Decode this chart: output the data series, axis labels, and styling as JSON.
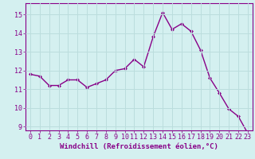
{
  "x": [
    0,
    1,
    2,
    3,
    4,
    5,
    6,
    7,
    8,
    9,
    10,
    11,
    12,
    13,
    14,
    15,
    16,
    17,
    18,
    19,
    20,
    21,
    22,
    23
  ],
  "y": [
    11.8,
    11.7,
    11.2,
    11.2,
    11.5,
    11.5,
    11.1,
    11.3,
    11.5,
    12.0,
    12.1,
    12.6,
    12.2,
    13.8,
    15.1,
    14.2,
    14.5,
    14.1,
    13.1,
    11.6,
    10.8,
    9.95,
    9.55,
    8.65
  ],
  "line_color": "#880088",
  "marker": "D",
  "marker_size": 2.0,
  "linewidth": 1.0,
  "xlabel": "Windchill (Refroidissement éolien,°C)",
  "xlabel_fontsize": 6.5,
  "ylim": [
    8.8,
    15.6
  ],
  "xlim": [
    -0.5,
    23.5
  ],
  "yticks": [
    9,
    10,
    11,
    12,
    13,
    14,
    15
  ],
  "xticks": [
    0,
    1,
    2,
    3,
    4,
    5,
    6,
    7,
    8,
    9,
    10,
    11,
    12,
    13,
    14,
    15,
    16,
    17,
    18,
    19,
    20,
    21,
    22,
    23
  ],
  "tick_fontsize": 6.0,
  "background_color": "#d4f0f0",
  "grid_color": "#bbdddd",
  "spine_color": "#880088"
}
